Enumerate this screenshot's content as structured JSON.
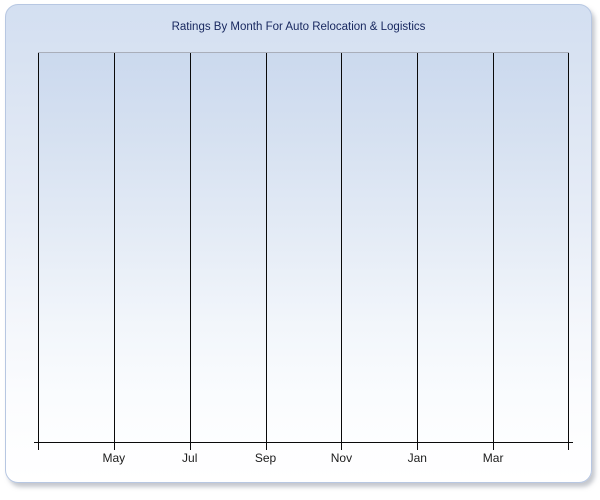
{
  "window": {
    "background_color": "#ffffff"
  },
  "panel": {
    "border_color": "#b7c7e2",
    "background_top_color": "#d3dff1",
    "background_bottom_color": "#ffffff"
  },
  "chart_data": {
    "type": "line",
    "title": "Ratings By Month For Auto Relocation & Logistics",
    "title_color": "#16265e",
    "xlabel": "",
    "ylabel": "",
    "x_tick_labels": [
      "May",
      "Jul",
      "Sep",
      "Nov",
      "Jan",
      "Mar"
    ],
    "x_gridline_count": 8,
    "gridline_color": "#0a0a0a",
    "axis_line_color": "#0a0a0a",
    "tick_label_color": "#1c1c1c",
    "plot_background_top_color": "#cbd9ee",
    "plot_background_bottom_color": "#fdfeff",
    "grid": "vertical-only",
    "legend": "none",
    "y_tick_labels": [],
    "series": []
  }
}
